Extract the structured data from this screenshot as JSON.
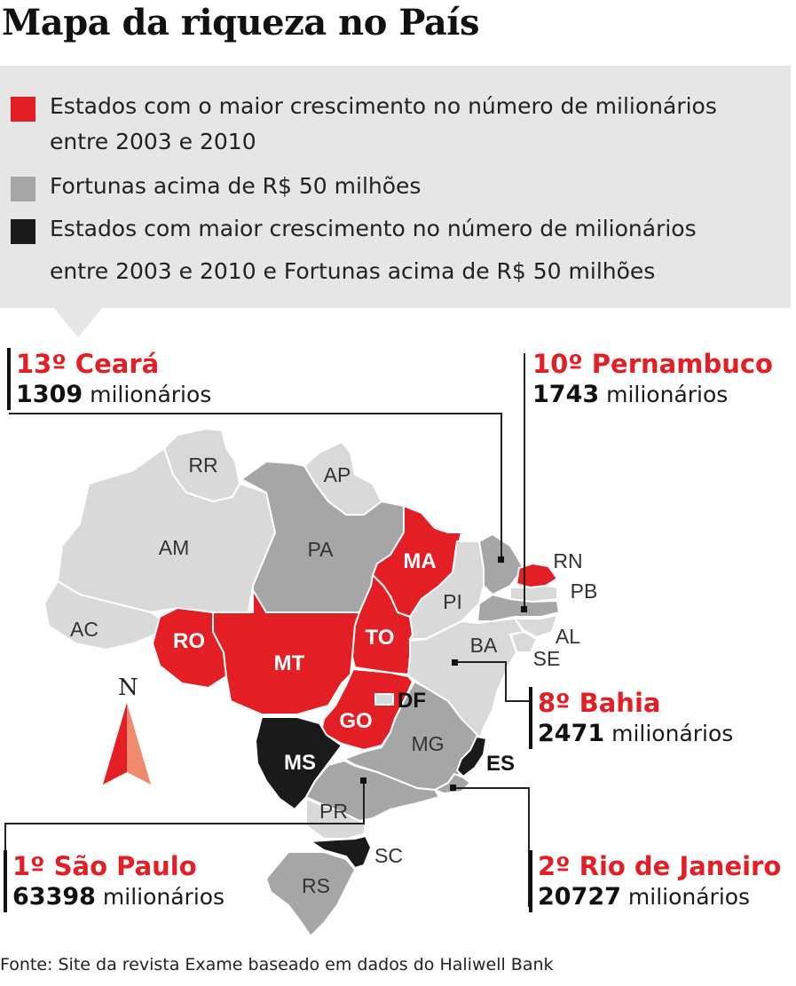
{
  "title": "Mapa da riqueza no País",
  "legend": [
    {
      "color": "#e31e24",
      "lines": [
        "Estados com o maior crescimento no número de milionários",
        "entre 2003 e 2010"
      ]
    },
    {
      "color": "#a6a6a6",
      "lines": [
        "Fortunas acima de R$ 50 milhões"
      ]
    },
    {
      "color": "#1a1a1a",
      "lines": [
        "Estados com maior crescimento no número de milionários",
        "entre 2003 e 2010  e Fortunas acima de R$ 50 milhões"
      ]
    }
  ],
  "colors": {
    "red": "#e31e24",
    "gray": "#a6a6a6",
    "light": "#d9d9d9",
    "black": "#1a1a1a"
  },
  "states": [
    {
      "id": "RR",
      "category": "none"
    },
    {
      "id": "AP",
      "category": "none"
    },
    {
      "id": "AM",
      "category": "none"
    },
    {
      "id": "PA",
      "category": "fortune"
    },
    {
      "id": "AC",
      "category": "none"
    },
    {
      "id": "RO",
      "category": "growth"
    },
    {
      "id": "MT",
      "category": "growth"
    },
    {
      "id": "MA",
      "category": "growth"
    },
    {
      "id": "TO",
      "category": "growth"
    },
    {
      "id": "PI",
      "category": "none"
    },
    {
      "id": "CE",
      "category": "fortune"
    },
    {
      "id": "RN",
      "category": "growth"
    },
    {
      "id": "PB",
      "category": "none"
    },
    {
      "id": "PE",
      "category": "fortune"
    },
    {
      "id": "AL",
      "category": "none"
    },
    {
      "id": "SE",
      "category": "none"
    },
    {
      "id": "BA",
      "category": "none"
    },
    {
      "id": "GO",
      "category": "growth"
    },
    {
      "id": "DF",
      "category": "none"
    },
    {
      "id": "MG",
      "category": "fortune"
    },
    {
      "id": "ES",
      "category": "both"
    },
    {
      "id": "RJ",
      "category": "fortune"
    },
    {
      "id": "MS",
      "category": "both"
    },
    {
      "id": "SP",
      "category": "fortune"
    },
    {
      "id": "PR",
      "category": "none"
    },
    {
      "id": "SC",
      "category": "both"
    },
    {
      "id": "RS",
      "category": "fortune"
    }
  ],
  "compass": "N",
  "callouts": {
    "ceara": {
      "rank": "13º Ceará",
      "number": "1309",
      "unit": "milionários"
    },
    "pernambuco": {
      "rank": "10º Pernambuco",
      "number": "1743",
      "unit": "milionários"
    },
    "bahia": {
      "rank": "8º Bahia",
      "number": "2471",
      "unit": "milionários"
    },
    "sao_paulo": {
      "rank": "1º São Paulo",
      "number": "63398",
      "unit": "milionários"
    },
    "rio": {
      "rank": "2º Rio de Janeiro",
      "number": "20727",
      "unit": "milionários"
    }
  },
  "source": "Fonte: Site da revista Exame baseado em dados do Haliwell Bank"
}
